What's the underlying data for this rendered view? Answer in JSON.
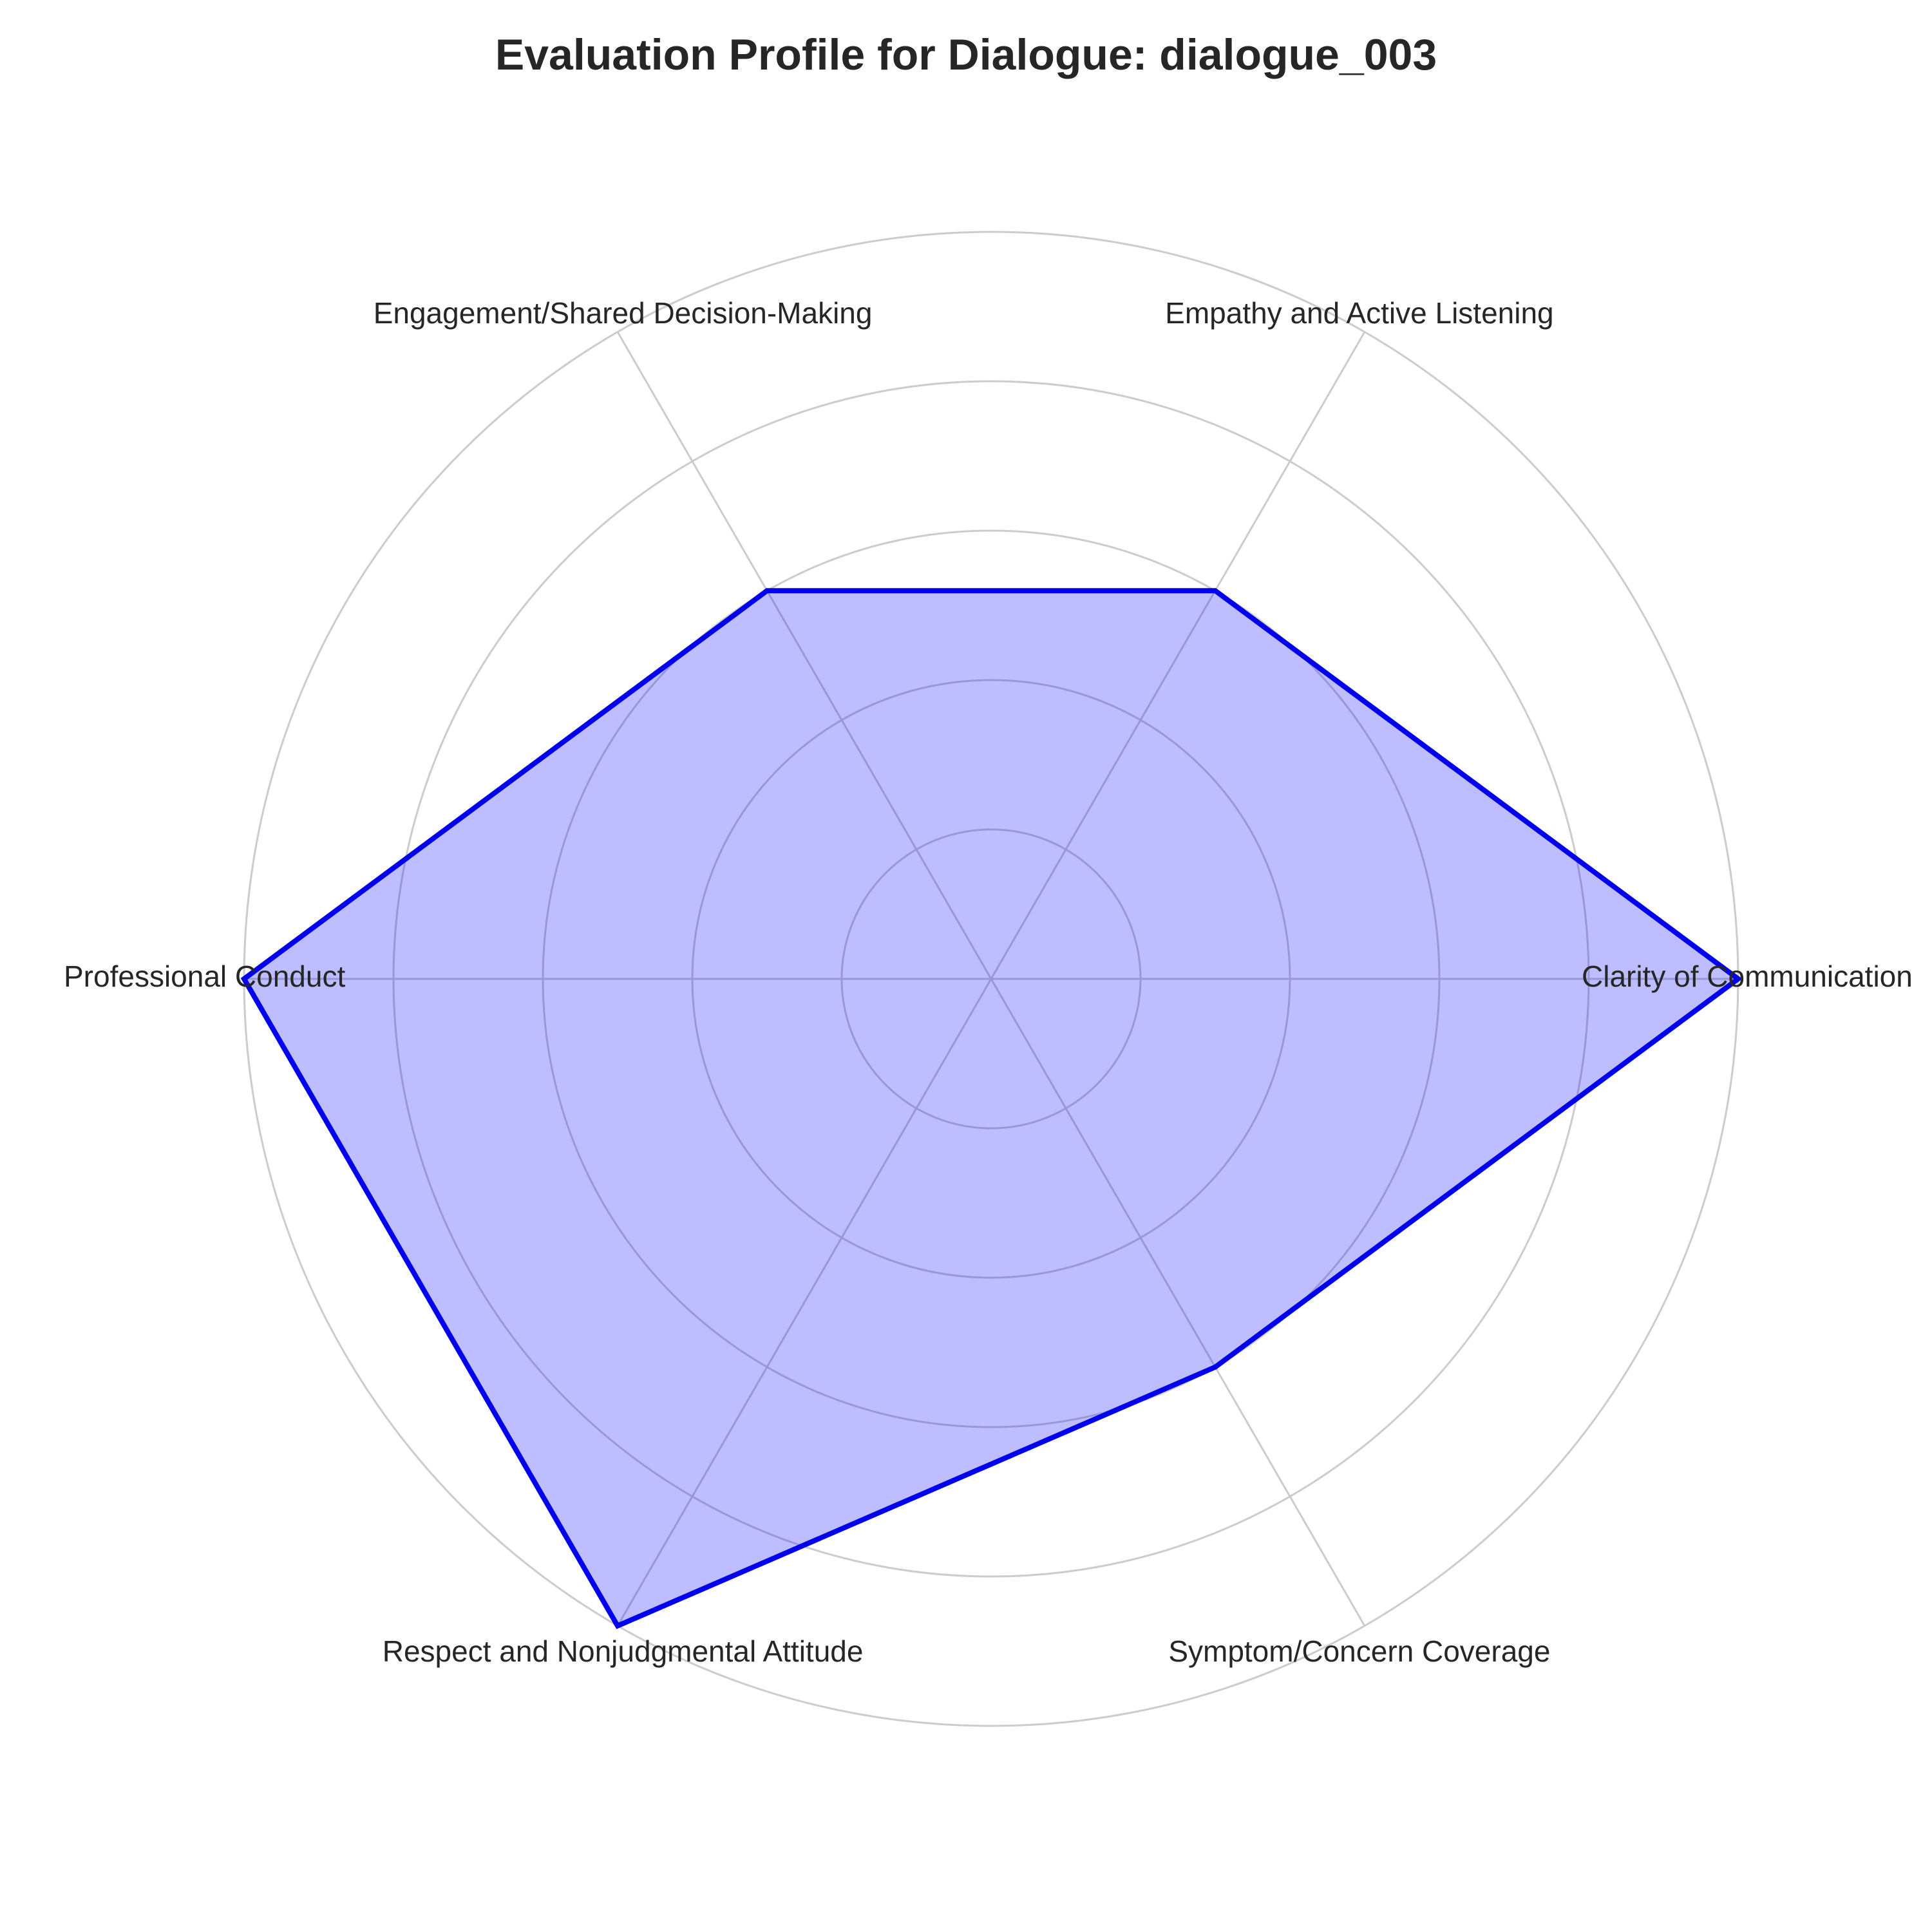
{
  "chart_data": {
    "type": "radar",
    "title": "Evaluation Profile for Dialogue: dialogue_003",
    "categories": [
      "Clarity of Communication",
      "Empathy and Active Listening",
      "Engagement/Shared Decision-Making",
      "Professional Conduct",
      "Respect and Nonjudgmental Attitude",
      "Symptom/Concern Coverage"
    ],
    "series": [
      {
        "values": [
          5,
          3,
          3,
          5,
          5,
          3
        ]
      }
    ],
    "rlim": [
      0,
      5
    ],
    "ring_levels": [
      1,
      2,
      3,
      4,
      5
    ],
    "radial_tick_labels_shown": false,
    "grid": true,
    "legend": "none",
    "colors": {
      "line": "#0000ee",
      "fill": "#0000ff",
      "grid": "#cccccc",
      "text": "#262626"
    }
  }
}
